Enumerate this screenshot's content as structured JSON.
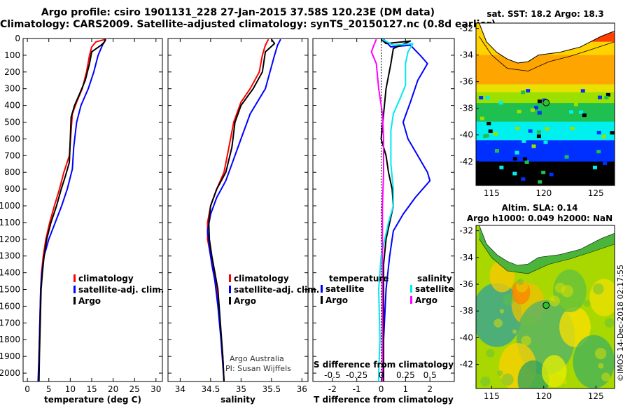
{
  "title": {
    "line1": "Argo profile: csiro 1901131_228 27-Jan-2015 37.58S 120.23E (DM data)",
    "line2": "Climatology: CARS2009. Satellite-adjusted climatology: synTS_20150127.nc (0.8d earlier)"
  },
  "depth_ticks": [
    "0",
    "100",
    "200",
    "300",
    "400",
    "500",
    "600",
    "700",
    "800",
    "900",
    "1000",
    "1100",
    "1200",
    "1300",
    "1400",
    "1500",
    "1600",
    "1700",
    "1800",
    "1900",
    "2000"
  ],
  "colors": {
    "climatology": "#ff0000",
    "satellite": "#0000ff",
    "argo": "#000000",
    "cyan": "#00e8f0",
    "magenta": "#ff00ff"
  },
  "panel1": {
    "xlabel": "temperature (deg C)",
    "xticks": [
      "0",
      "5",
      "10",
      "15",
      "20",
      "25",
      "30"
    ],
    "legend": [
      "climatology",
      "satellite-adj. clim.",
      "Argo"
    ]
  },
  "panel2": {
    "xlabel": "salinity",
    "xticks": [
      "34",
      "34.5",
      "35",
      "35.5",
      "36"
    ],
    "legend": [
      "climatology",
      "satellite-adj. clim.",
      "Argo"
    ],
    "credit1": "Argo Australia",
    "credit2": "PI: Susan Wijffels"
  },
  "panel3": {
    "xlabel": "T difference from climatology",
    "xticks": [
      "-2",
      "-1",
      "0",
      "1",
      "2"
    ],
    "top_label": "S difference from climatology",
    "top_ticks": [
      "-0.5",
      "-0.25",
      "0",
      "0.25",
      "0.5"
    ],
    "legend_left_title": "temperature",
    "legend_left": [
      "satellite",
      "Argo"
    ],
    "legend_right_title": "salinity",
    "legend_right": [
      "satellite",
      "Argo"
    ]
  },
  "map1": {
    "title": "sat. SST: 18.2 Argo: 18.3",
    "yticks": [
      "-32",
      "-34",
      "-36",
      "-38",
      "-40",
      "-42"
    ],
    "xticks": [
      "115",
      "120",
      "125"
    ]
  },
  "map2": {
    "title1": "Altim. SLA: 0.14",
    "title2": "Argo h1000: 0.049 h2000: NaN",
    "yticks": [
      "-32",
      "-34",
      "-36",
      "-38",
      "-40",
      "-42"
    ],
    "xticks": [
      "115",
      "120",
      "125"
    ]
  },
  "side_label": "©IMOS 14-Dec-2018 02:17:55",
  "chart_data": [
    {
      "type": "line",
      "xlabel": "temperature (deg C)",
      "ylabel": "",
      "xlim": [
        -1,
        31.5
      ],
      "ylim": [
        2050,
        0
      ],
      "series": [
        {
          "name": "climatology",
          "color": "#ff0000",
          "points": [
            [
              18.2,
              5
            ],
            [
              16,
              20
            ],
            [
              15,
              50
            ],
            [
              14.5,
              100
            ],
            [
              13.8,
              200
            ],
            [
              12.8,
              300
            ],
            [
              11.5,
              380
            ],
            [
              10.5,
              450
            ],
            [
              10.2,
              550
            ],
            [
              9.8,
              700
            ],
            [
              8.5,
              800
            ],
            [
              7.5,
              900
            ],
            [
              6.3,
              1000
            ],
            [
              5.2,
              1100
            ],
            [
              4.3,
              1200
            ],
            [
              3.7,
              1300
            ],
            [
              3.3,
              1400
            ],
            [
              3.1,
              1500
            ],
            [
              2.9,
              1700
            ],
            [
              2.7,
              1900
            ],
            [
              2.6,
              2050
            ]
          ]
        },
        {
          "name": "satellite-adj. clim.",
          "color": "#0000ff",
          "points": [
            [
              18.3,
              5
            ],
            [
              17.5,
              40
            ],
            [
              16.5,
              100
            ],
            [
              15.5,
              200
            ],
            [
              14.2,
              300
            ],
            [
              12.5,
              400
            ],
            [
              11.5,
              500
            ],
            [
              10.8,
              650
            ],
            [
              10.5,
              780
            ],
            [
              9.3,
              900
            ],
            [
              8,
              1000
            ],
            [
              6.5,
              1100
            ],
            [
              5,
              1200
            ],
            [
              3.9,
              1300
            ],
            [
              3.4,
              1400
            ],
            [
              3.1,
              1500
            ],
            [
              2.9,
              1700
            ],
            [
              2.7,
              1900
            ],
            [
              2.5,
              2050
            ]
          ]
        },
        {
          "name": "Argo",
          "color": "#000000",
          "points": [
            [
              18.2,
              5
            ],
            [
              18,
              20
            ],
            [
              17.2,
              40
            ],
            [
              15,
              80
            ],
            [
              14.5,
              150
            ],
            [
              13.5,
              250
            ],
            [
              12.2,
              330
            ],
            [
              11,
              400
            ],
            [
              10.2,
              470
            ],
            [
              10,
              600
            ],
            [
              9.8,
              740
            ],
            [
              8.9,
              820
            ],
            [
              7.9,
              900
            ],
            [
              6.8,
              1000
            ],
            [
              5.5,
              1100
            ],
            [
              4.5,
              1200
            ],
            [
              3.9,
              1300
            ],
            [
              3.5,
              1400
            ],
            [
              3.2,
              1500
            ],
            [
              3,
              1700
            ],
            [
              2.8,
              1900
            ],
            [
              2.7,
              2050
            ]
          ]
        }
      ]
    },
    {
      "type": "line",
      "xlabel": "salinity",
      "ylabel": "",
      "xlim": [
        33.8,
        36.1
      ],
      "ylim": [
        2050,
        0
      ],
      "series": [
        {
          "name": "climatology",
          "color": "#ff0000",
          "points": [
            [
              35.45,
              5
            ],
            [
              35.4,
              40
            ],
            [
              35.35,
              100
            ],
            [
              35.3,
              200
            ],
            [
              35.15,
              300
            ],
            [
              35.0,
              380
            ],
            [
              34.88,
              500
            ],
            [
              34.8,
              650
            ],
            [
              34.72,
              800
            ],
            [
              34.6,
              900
            ],
            [
              34.5,
              1000
            ],
            [
              34.45,
              1100
            ],
            [
              34.45,
              1200
            ],
            [
              34.5,
              1300
            ],
            [
              34.55,
              1400
            ],
            [
              34.6,
              1500
            ],
            [
              34.65,
              1700
            ],
            [
              34.7,
              1900
            ],
            [
              34.72,
              2050
            ]
          ]
        },
        {
          "name": "satellite-adj. clim.",
          "color": "#0000ff",
          "points": [
            [
              35.65,
              5
            ],
            [
              35.6,
              40
            ],
            [
              35.55,
              100
            ],
            [
              35.4,
              300
            ],
            [
              35.15,
              450
            ],
            [
              35.0,
              600
            ],
            [
              34.85,
              750
            ],
            [
              34.75,
              850
            ],
            [
              34.6,
              950
            ],
            [
              34.5,
              1050
            ],
            [
              34.45,
              1150
            ],
            [
              34.48,
              1250
            ],
            [
              34.52,
              1350
            ],
            [
              34.57,
              1450
            ],
            [
              34.62,
              1600
            ],
            [
              34.67,
              1800
            ],
            [
              34.7,
              1950
            ],
            [
              34.72,
              2050
            ]
          ]
        },
        {
          "name": "Argo",
          "color": "#000000",
          "points": [
            [
              35.5,
              5
            ],
            [
              35.55,
              30
            ],
            [
              35.4,
              80
            ],
            [
              35.35,
              200
            ],
            [
              35.2,
              300
            ],
            [
              35.0,
              400
            ],
            [
              34.9,
              500
            ],
            [
              34.85,
              650
            ],
            [
              34.75,
              800
            ],
            [
              34.6,
              900
            ],
            [
              34.5,
              1000
            ],
            [
              34.47,
              1100
            ],
            [
              34.48,
              1200
            ],
            [
              34.52,
              1300
            ],
            [
              34.57,
              1400
            ],
            [
              34.62,
              1500
            ],
            [
              34.66,
              1700
            ],
            [
              34.7,
              1900
            ],
            [
              34.72,
              2050
            ]
          ]
        }
      ]
    },
    {
      "type": "line",
      "xlabel": "T difference from climatology",
      "top_label": "S difference from climatology",
      "xlim": [
        -2.8,
        3
      ],
      "ylim": [
        2050,
        0
      ],
      "series": [
        {
          "name": "temperature satellite",
          "color": "#0000ff",
          "points": [
            [
              0.1,
              5
            ],
            [
              0.4,
              50
            ],
            [
              1.2,
              40
            ],
            [
              1.6,
              100
            ],
            [
              1.9,
              150
            ],
            [
              1.5,
              250
            ],
            [
              1.2,
              380
            ],
            [
              0.9,
              500
            ],
            [
              1.1,
              600
            ],
            [
              1.5,
              700
            ],
            [
              1.9,
              800
            ],
            [
              2.0,
              850
            ],
            [
              1.4,
              950
            ],
            [
              0.9,
              1050
            ],
            [
              0.5,
              1150
            ],
            [
              0.35,
              1300
            ],
            [
              0.2,
              1500
            ],
            [
              0.1,
              1800
            ],
            [
              0.05,
              2050
            ]
          ]
        },
        {
          "name": "temperature Argo",
          "color": "#000000",
          "points": [
            [
              0.0,
              5
            ],
            [
              0.2,
              30
            ],
            [
              1.2,
              15
            ],
            [
              0.5,
              60
            ],
            [
              0.4,
              150
            ],
            [
              0.2,
              300
            ],
            [
              0.1,
              450
            ],
            [
              0.0,
              600
            ],
            [
              0.2,
              700
            ],
            [
              0.3,
              800
            ],
            [
              0.45,
              900
            ],
            [
              0.5,
              1000
            ],
            [
              0.35,
              1100
            ],
            [
              0.2,
              1200
            ],
            [
              0.1,
              1350
            ],
            [
              0.1,
              1500
            ],
            [
              0.1,
              1800
            ],
            [
              0.1,
              2050
            ]
          ]
        },
        {
          "name": "salinity satellite",
          "color": "#00e8f0",
          "points": [
            [
              0.05,
              5
            ],
            [
              0.5,
              40
            ],
            [
              1.3,
              30
            ],
            [
              1.1,
              80
            ],
            [
              1.0,
              150
            ],
            [
              1.0,
              280
            ],
            [
              0.8,
              350
            ],
            [
              0.5,
              450
            ],
            [
              0.4,
              550
            ],
            [
              0.4,
              750
            ],
            [
              0.5,
              900
            ],
            [
              0.5,
              1000
            ],
            [
              0.3,
              1100
            ],
            [
              0.0,
              1300
            ],
            [
              -0.1,
              1500
            ],
            [
              -0.05,
              1800
            ],
            [
              -0.1,
              2000
            ],
            [
              -0.1,
              2050
            ]
          ]
        },
        {
          "name": "salinity Argo",
          "color": "#ff00ff",
          "points": [
            [
              -0.2,
              5
            ],
            [
              -0.3,
              40
            ],
            [
              -0.4,
              80
            ],
            [
              -0.2,
              150
            ],
            [
              -0.1,
              300
            ],
            [
              0.05,
              450
            ],
            [
              0.1,
              600
            ],
            [
              0.1,
              800
            ],
            [
              0.05,
              1000
            ],
            [
              0.05,
              1300
            ],
            [
              0.05,
              1800
            ],
            [
              0.05,
              2050
            ]
          ]
        }
      ]
    }
  ]
}
